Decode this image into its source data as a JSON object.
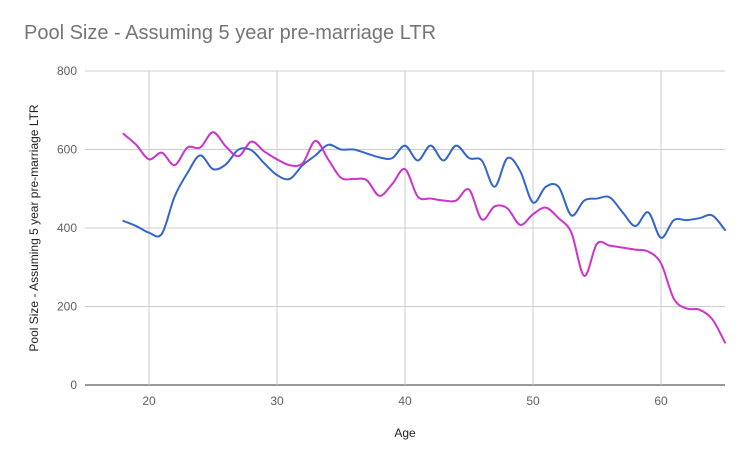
{
  "chart_data": {
    "type": "line",
    "title": "Pool Size - Assuming 5 year pre-marriage LTR",
    "xlabel": "Age",
    "ylabel": "Pool Size - Assuming 5 year pre-marriage LTR",
    "xlim": [
      15,
      65
    ],
    "ylim": [
      0,
      800
    ],
    "x_ticks": [
      20,
      30,
      40,
      50,
      60
    ],
    "y_ticks": [
      0,
      200,
      400,
      600,
      800
    ],
    "grid": true,
    "legend": "none",
    "x": [
      18,
      19,
      20,
      21,
      22,
      23,
      24,
      25,
      26,
      27,
      28,
      29,
      30,
      31,
      32,
      33,
      34,
      35,
      36,
      37,
      38,
      39,
      40,
      41,
      42,
      43,
      44,
      45,
      46,
      47,
      48,
      49,
      50,
      51,
      52,
      53,
      54,
      55,
      56,
      57,
      58,
      59,
      60,
      61,
      62,
      63,
      64,
      65
    ],
    "series": [
      {
        "color": "#3366cc",
        "values": [
          418,
          405,
          388,
          385,
          480,
          540,
          585,
          550,
          562,
          600,
          598,
          565,
          535,
          525,
          560,
          585,
          612,
          600,
          600,
          590,
          580,
          578,
          610,
          572,
          610,
          572,
          610,
          578,
          572,
          505,
          578,
          545,
          465,
          505,
          505,
          432,
          470,
          475,
          478,
          440,
          405,
          440,
          375,
          420,
          420,
          425,
          432,
          395
        ]
      },
      {
        "color": "#cc33cc",
        "values": [
          640,
          612,
          575,
          592,
          560,
          605,
          605,
          644,
          608,
          583,
          620,
          595,
          575,
          560,
          565,
          622,
          575,
          528,
          525,
          522,
          482,
          512,
          550,
          480,
          475,
          470,
          470,
          498,
          422,
          455,
          450,
          408,
          435,
          452,
          425,
          388,
          278,
          360,
          355,
          350,
          345,
          340,
          310,
          220,
          195,
          192,
          168,
          108
        ]
      }
    ]
  }
}
